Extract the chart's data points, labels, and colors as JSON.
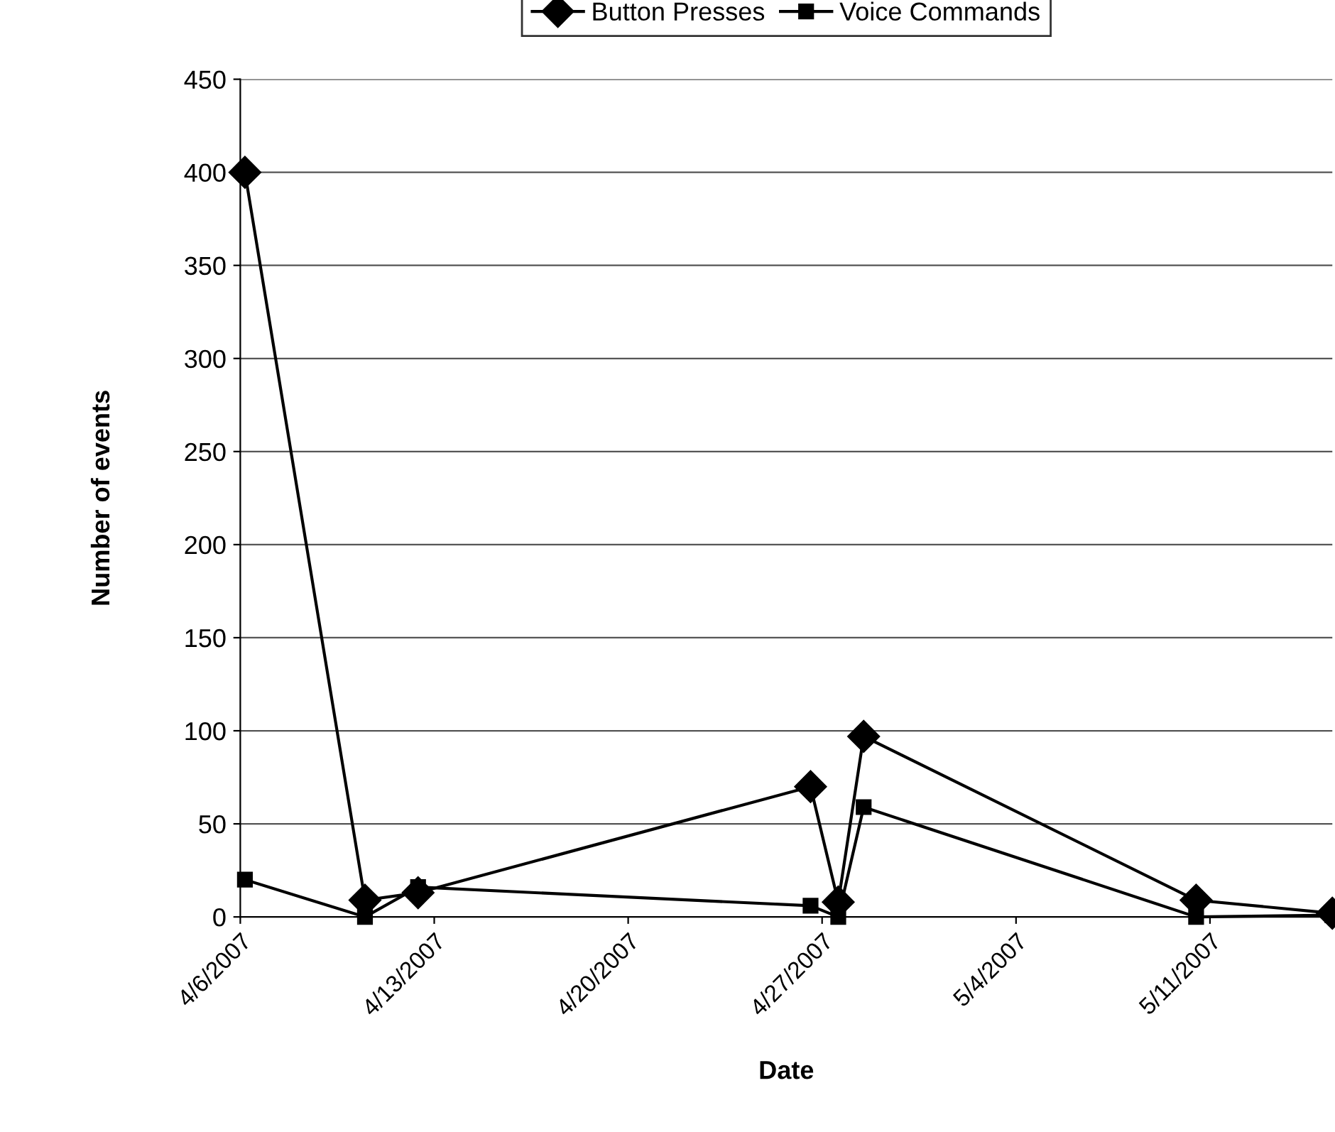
{
  "chart_data": {
    "type": "line",
    "xlabel": "Date",
    "ylabel": "Number of events",
    "x": [
      "2007-04-06T04:00",
      "2007-04-10T12:00",
      "2007-04-12T10:00",
      "2007-04-26T14:00",
      "2007-04-27T14:00",
      "2007-04-28T12:00",
      "2007-05-10T12:00",
      "2007-05-15T10:00"
    ],
    "series": [
      {
        "name": "Button Presses",
        "color": "#000000",
        "marker": "diamond",
        "values": [
          400,
          9,
          13,
          70,
          8,
          97,
          9,
          2
        ]
      },
      {
        "name": "Voice Commands",
        "color": "#000000",
        "marker": "square",
        "values": [
          20,
          0,
          16,
          6,
          0,
          59,
          0,
          1
        ]
      }
    ],
    "xlim": [
      "2007-04-06",
      "2007-05-15T10:00"
    ],
    "xticks": [
      {
        "value": "2007-04-06",
        "label": "4/6/2007"
      },
      {
        "value": "2007-04-13",
        "label": "4/13/2007"
      },
      {
        "value": "2007-04-20",
        "label": "4/20/2007"
      },
      {
        "value": "2007-04-27",
        "label": "4/27/2007"
      },
      {
        "value": "2007-05-04",
        "label": "5/4/2007"
      },
      {
        "value": "2007-05-11",
        "label": "5/11/2007"
      }
    ],
    "ylim": [
      0,
      450
    ],
    "yticks": [
      0,
      50,
      100,
      150,
      200,
      250,
      300,
      350,
      400,
      450
    ],
    "grid": "y",
    "legend": "top",
    "line_style": "solid"
  }
}
